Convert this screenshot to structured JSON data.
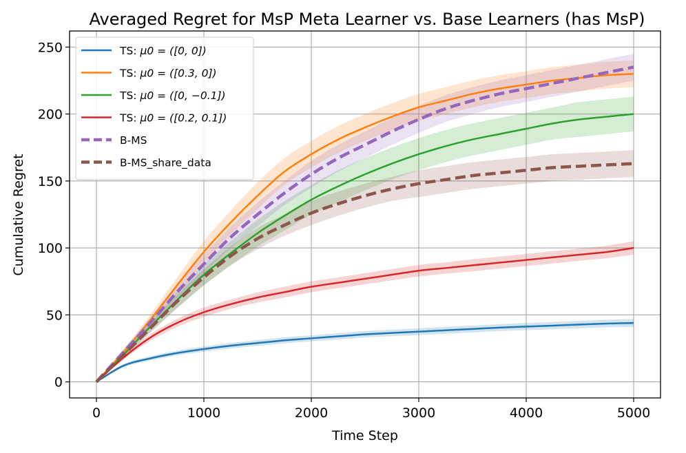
{
  "chart_data": {
    "type": "line",
    "title": "Averaged Regret for MsP Meta Learner vs. Base Learners (has MsP)",
    "xlabel": "Time Step",
    "ylabel": "Cumulative Regret",
    "xlim": [
      -250,
      5250
    ],
    "ylim": [
      -12,
      262
    ],
    "xticks": [
      0,
      1000,
      2000,
      3000,
      4000,
      5000
    ],
    "xtick_labels": [
      "0",
      "1000",
      "2000",
      "3000",
      "4000",
      "5000"
    ],
    "yticks": [
      0,
      50,
      100,
      150,
      200,
      250
    ],
    "ytick_labels": [
      "0",
      "50",
      "100",
      "150",
      "200",
      "250"
    ],
    "grid": true,
    "legend_position": "top-left",
    "x": [
      0,
      250,
      500,
      750,
      1000,
      1250,
      1500,
      1750,
      2000,
      2250,
      2500,
      2750,
      3000,
      3250,
      3500,
      3750,
      4000,
      4250,
      4500,
      4750,
      5000
    ],
    "series": [
      {
        "name": "TS: μ0 = ([0, 0])",
        "label_prefix": "TS: ",
        "label_math": "μ0 = ([0, 0])",
        "color": "#1f77b4",
        "dashed": false,
        "values": [
          0,
          12,
          17.5,
          21.5,
          24.5,
          27,
          29,
          31,
          32.5,
          34,
          35.5,
          36.5,
          37.5,
          38.5,
          39.5,
          40.5,
          41.3,
          42,
          42.8,
          43.5,
          44
        ],
        "band": [
          0.3,
          1.2,
          1.6,
          1.8,
          2.0,
          2.1,
          2.2,
          2.3,
          2.3,
          2.4,
          2.4,
          2.5,
          2.5,
          2.6,
          2.6,
          2.6,
          2.7,
          2.7,
          2.8,
          2.8,
          3
        ]
      },
      {
        "name": "TS: μ0 = ([0.3, 0])",
        "label_prefix": "TS: ",
        "label_math": "μ0 = ([0.3, 0])",
        "color": "#ff7f0e",
        "dashed": false,
        "values": [
          0,
          22,
          46,
          72,
          97,
          119,
          139,
          157,
          170,
          181,
          190,
          198,
          205,
          210,
          215,
          219,
          222,
          225,
          227,
          229,
          230
        ],
        "band": [
          0.5,
          2,
          4,
          6,
          8,
          9,
          10,
          10,
          10,
          10,
          10,
          10,
          10,
          10,
          10,
          10,
          10,
          10,
          10,
          10,
          10
        ]
      },
      {
        "name": "TS: μ0 = ([0, −0.1])",
        "label_prefix": "TS: ",
        "label_math": "μ0 = ([0, −0.1])",
        "color": "#2ca02c",
        "dashed": false,
        "values": [
          0,
          20,
          41,
          61,
          80,
          96,
          111,
          124,
          136,
          146,
          155,
          163,
          170,
          176,
          181,
          185,
          189,
          193,
          196,
          198,
          200
        ],
        "band": [
          0.5,
          2,
          4,
          6,
          8,
          9,
          10,
          11,
          11,
          12,
          12,
          12,
          12,
          12,
          12,
          12,
          12,
          12,
          13,
          13,
          13
        ]
      },
      {
        "name": "TS: μ0 = ([0.2, 0.1])",
        "label_prefix": "TS: ",
        "label_math": "μ0 = ([0.2, 0.1])",
        "color": "#d62728",
        "dashed": false,
        "values": [
          0,
          18,
          33,
          44,
          52,
          58,
          63,
          67,
          71,
          74,
          77,
          80,
          83,
          85,
          87,
          89,
          91,
          93,
          95,
          97,
          100
        ],
        "band": [
          0.3,
          1.5,
          2.5,
          3,
          3.5,
          3.5,
          3.8,
          4,
          4,
          4,
          4.2,
          4.2,
          4.3,
          4.3,
          4.5,
          4.5,
          4.5,
          4.6,
          4.6,
          4.7,
          5
        ]
      },
      {
        "name": "B-MS",
        "label_prefix": "B-MS",
        "label_math": "",
        "color": "#9467bd",
        "dashed": true,
        "values": [
          0,
          22,
          44,
          67,
          88,
          108,
          125,
          141,
          155,
          167,
          177,
          187,
          196,
          204,
          210,
          215,
          219,
          223,
          227,
          231,
          235
        ],
        "band": [
          0.5,
          2,
          4,
          6,
          7,
          8,
          9,
          9,
          10,
          10,
          10,
          10,
          10,
          10,
          10,
          10,
          10,
          10,
          10,
          10,
          10
        ]
      },
      {
        "name": "B-MS_share_data",
        "label_prefix": "B-MS_share_data",
        "label_math": "",
        "color": "#8c564b",
        "dashed": true,
        "values": [
          0,
          20,
          40,
          60,
          78,
          94,
          107,
          117,
          126,
          133,
          139,
          144,
          148,
          151,
          154,
          156,
          158,
          160,
          161,
          162,
          163
        ],
        "band": [
          0.5,
          2,
          3.5,
          5,
          6,
          7,
          8,
          8,
          9,
          9,
          9,
          9,
          10,
          10,
          10,
          10,
          10,
          10,
          10,
          10,
          10
        ]
      }
    ]
  }
}
